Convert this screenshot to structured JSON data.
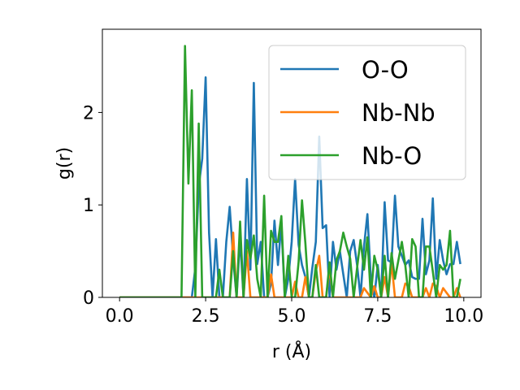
{
  "chart_data": {
    "type": "line",
    "xlabel": "r (Å)",
    "ylabel": "g(r)",
    "xlim": [
      -0.5,
      10.5
    ],
    "ylim": [
      0,
      2.9
    ],
    "xticks": [
      0.0,
      2.5,
      5.0,
      7.5,
      10.0
    ],
    "xtick_labels": [
      "0.0",
      "2.5",
      "5.0",
      "7.5",
      "10.0"
    ],
    "yticks": [
      0,
      1,
      2
    ],
    "ytick_labels": [
      "0",
      "1",
      "2"
    ],
    "grid": false,
    "legend_position": "upper-right",
    "series": [
      {
        "name": "O-O",
        "color": "#1f77b4",
        "x": [
          0.0,
          2.1,
          2.2,
          2.3,
          2.4,
          2.5,
          2.6,
          2.7,
          2.8,
          2.9,
          3.0,
          3.1,
          3.2,
          3.3,
          3.4,
          3.5,
          3.6,
          3.7,
          3.8,
          3.9,
          4.0,
          4.1,
          4.2,
          4.3,
          4.4,
          4.5,
          4.6,
          4.7,
          4.8,
          4.9,
          5.0,
          5.1,
          5.2,
          5.3,
          5.4,
          5.5,
          5.6,
          5.7,
          5.8,
          5.9,
          6.0,
          6.1,
          6.2,
          6.3,
          6.4,
          6.5,
          6.6,
          6.7,
          6.8,
          6.9,
          7.0,
          7.1,
          7.2,
          7.3,
          7.4,
          7.5,
          7.6,
          7.7,
          7.8,
          7.9,
          8.0,
          8.1,
          8.2,
          8.3,
          8.4,
          8.5,
          8.6,
          8.7,
          8.8,
          8.9,
          9.0,
          9.1,
          9.2,
          9.3,
          9.4,
          9.5,
          9.6,
          9.7,
          9.8,
          9.9
        ],
        "y": [
          0.0,
          0.0,
          0.32,
          1.2,
          1.5,
          2.38,
          0.7,
          0.0,
          0.63,
          0.0,
          0.0,
          0.6,
          0.98,
          0.42,
          0.0,
          0.65,
          0.0,
          1.28,
          0.3,
          2.32,
          0.36,
          0.6,
          0.0,
          0.0,
          0.15,
          0.83,
          0.35,
          0.8,
          0.0,
          0.2,
          0.6,
          1.28,
          0.57,
          0.35,
          0.22,
          0.0,
          0.32,
          0.6,
          1.74,
          0.75,
          0.78,
          0.0,
          0.6,
          0.3,
          0.5,
          0.25,
          0.0,
          0.5,
          0.62,
          0.35,
          0.0,
          0.55,
          0.9,
          0.2,
          0.0,
          0.35,
          0.0,
          1.03,
          0.4,
          0.38,
          1.1,
          0.55,
          0.45,
          0.35,
          0.4,
          0.22,
          0.2,
          0.2,
          0.85,
          0.25,
          0.4,
          1.07,
          0.2,
          0.62,
          0.4,
          0.25,
          0.36,
          0.36,
          0.6,
          0.36
        ]
      },
      {
        "name": "Nb-Nb",
        "color": "#ff7f0e",
        "x": [
          0.0,
          3.2,
          3.3,
          3.4,
          3.5,
          3.6,
          3.7,
          3.8,
          3.9,
          4.0,
          4.1,
          4.2,
          4.3,
          4.4,
          4.5,
          4.6,
          4.7,
          4.8,
          4.9,
          5.0,
          5.1,
          5.2,
          5.3,
          5.4,
          5.5,
          5.6,
          5.7,
          5.8,
          5.9,
          6.0,
          6.1,
          6.2,
          6.3,
          6.4,
          6.5,
          6.6,
          6.7,
          6.8,
          6.9,
          7.0,
          7.1,
          7.2,
          7.3,
          7.4,
          7.5,
          7.6,
          7.7,
          7.8,
          7.9,
          8.0,
          8.1,
          8.2,
          8.3,
          8.4,
          8.5,
          8.6,
          8.7,
          8.8,
          8.9,
          9.0,
          9.1,
          9.2,
          9.3,
          9.4,
          9.5,
          9.6,
          9.7,
          9.8,
          9.9
        ],
        "y": [
          0.0,
          0.0,
          0.7,
          0.0,
          0.0,
          0.0,
          0.5,
          0.0,
          0.0,
          0.0,
          0.0,
          0.0,
          0.0,
          0.25,
          0.0,
          0.0,
          0.0,
          0.0,
          0.0,
          0.0,
          0.17,
          0.0,
          0.0,
          0.22,
          0.0,
          0.0,
          0.28,
          0.45,
          0.0,
          0.0,
          0.32,
          0.0,
          0.0,
          0.0,
          0.0,
          0.0,
          0.0,
          0.0,
          0.0,
          0.0,
          0.1,
          0.05,
          0.0,
          0.12,
          0.0,
          0.0,
          0.22,
          0.0,
          0.37,
          0.0,
          0.0,
          0.0,
          0.15,
          0.12,
          0.0,
          0.0,
          0.0,
          0.0,
          0.1,
          0.0,
          0.15,
          0.12,
          0.0,
          0.1,
          0.05,
          0.0,
          0.0,
          0.1,
          0.0
        ]
      },
      {
        "name": "Nb-O",
        "color": "#2ca02c",
        "x": [
          0.0,
          1.8,
          1.9,
          2.0,
          2.1,
          2.2,
          2.3,
          2.4,
          2.5,
          2.6,
          2.7,
          2.8,
          2.9,
          3.0,
          3.1,
          3.2,
          3.3,
          3.4,
          3.5,
          3.6,
          3.7,
          3.8,
          3.9,
          4.0,
          4.1,
          4.2,
          4.3,
          4.4,
          4.5,
          4.6,
          4.7,
          4.8,
          4.9,
          5.0,
          5.1,
          5.2,
          5.3,
          5.4,
          5.5,
          5.6,
          5.7,
          5.8,
          5.9,
          6.0,
          6.1,
          6.2,
          6.3,
          6.4,
          6.5,
          6.6,
          6.7,
          6.8,
          6.9,
          7.0,
          7.1,
          7.2,
          7.3,
          7.4,
          7.5,
          7.6,
          7.7,
          7.8,
          7.9,
          8.0,
          8.1,
          8.2,
          8.3,
          8.4,
          8.5,
          8.6,
          8.7,
          8.8,
          8.9,
          9.0,
          9.1,
          9.2,
          9.3,
          9.4,
          9.5,
          9.6,
          9.7,
          9.8,
          9.9
        ],
        "y": [
          0.0,
          0.0,
          2.72,
          1.23,
          2.24,
          0.0,
          1.88,
          0.0,
          0.0,
          0.0,
          0.0,
          0.0,
          0.3,
          0.0,
          0.0,
          0.0,
          0.5,
          0.0,
          0.82,
          0.0,
          0.62,
          0.42,
          0.67,
          0.2,
          0.0,
          1.1,
          0.0,
          0.72,
          0.6,
          0.6,
          0.88,
          0.0,
          0.45,
          0.0,
          0.0,
          0.38,
          1.05,
          0.58,
          0.0,
          0.0,
          0.35,
          0.0,
          0.0,
          0.0,
          0.38,
          0.0,
          0.4,
          0.5,
          0.7,
          0.55,
          0.42,
          0.0,
          0.32,
          0.62,
          0.3,
          0.65,
          0.0,
          0.45,
          0.3,
          0.0,
          0.45,
          0.0,
          0.48,
          0.2,
          0.4,
          0.6,
          0.35,
          0.0,
          0.63,
          0.55,
          0.0,
          0.0,
          0.55,
          0.55,
          0.28,
          0.0,
          0.35,
          0.3,
          0.35,
          0.72,
          0.0,
          0.0,
          0.2
        ]
      }
    ]
  }
}
